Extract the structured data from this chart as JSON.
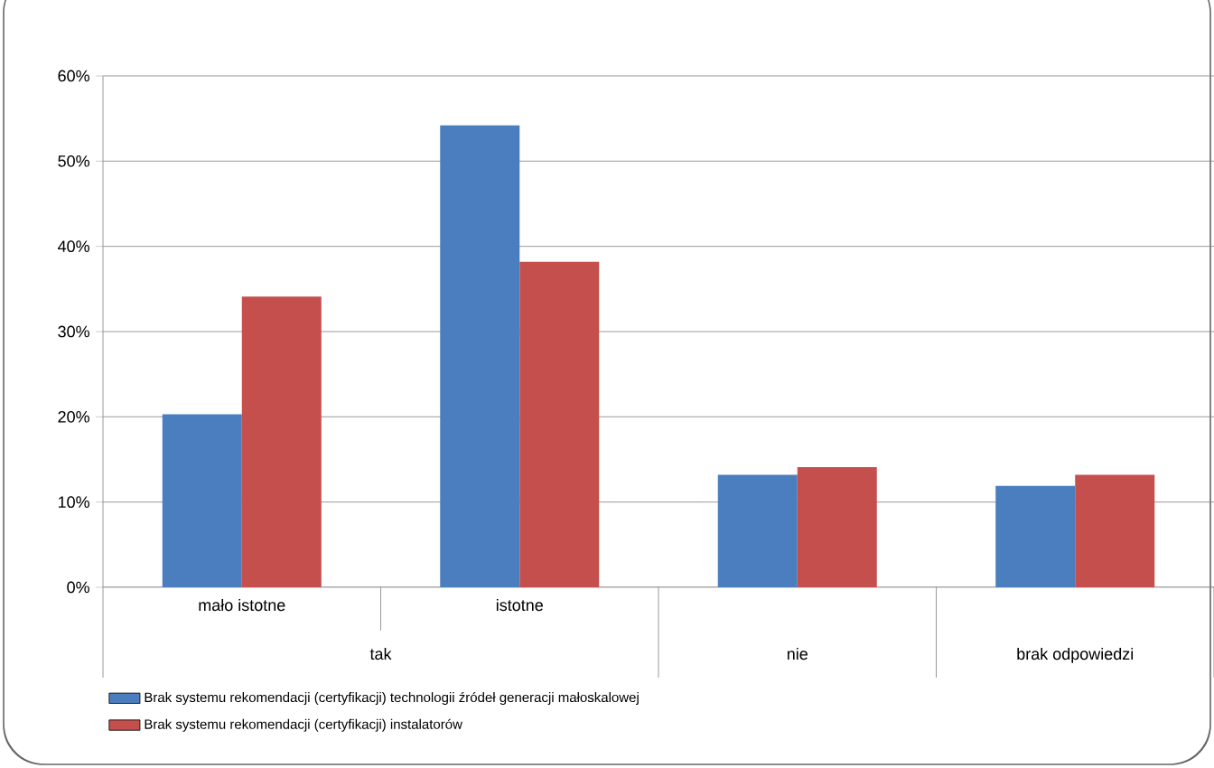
{
  "chart_data": {
    "type": "bar",
    "categories": [
      "mało istotne",
      "istotne",
      "nie",
      "brak odpowiedzi"
    ],
    "series": [
      {
        "name": "Brak systemu rekomendacji (certyfikacji) technologii źródeł generacji małoskalowej",
        "color": "#4a7ebf",
        "values": [
          20.3,
          54.2,
          13.2,
          11.9
        ]
      },
      {
        "name": "Brak systemu rekomendacji (certyfikacji) instalatorów",
        "color": "#c44f4c",
        "values": [
          34.1,
          38.2,
          14.1,
          13.2
        ]
      }
    ],
    "annotations": [
      "tak"
    ],
    "ylim": [
      0,
      60
    ],
    "yticks": [
      {
        "value": 0,
        "label": "0%"
      },
      {
        "value": 10,
        "label": "10%"
      },
      {
        "value": 20,
        "label": "20%"
      },
      {
        "value": 30,
        "label": "30%"
      },
      {
        "value": 40,
        "label": "40%"
      },
      {
        "value": 50,
        "label": "50%"
      },
      {
        "value": 60,
        "label": "60%"
      }
    ],
    "grid": "y",
    "legend": "bottom"
  }
}
